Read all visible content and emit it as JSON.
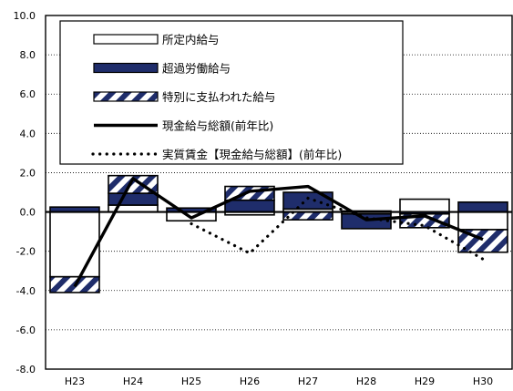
{
  "chart_data": {
    "type": "bar",
    "title": "",
    "xlabel": "",
    "ylabel": "",
    "categories": [
      "H23",
      "H24",
      "H25",
      "H26",
      "H27",
      "H28",
      "H29",
      "H30"
    ],
    "ylim": [
      -8.0,
      10.0
    ],
    "yticks": [
      "10.0",
      "8.0",
      "6.0",
      "4.0",
      "2.0",
      "0.0",
      "-2.0",
      "-4.0",
      "-6.0",
      "-8.0"
    ],
    "grid": true,
    "legend_position": "top-left",
    "stacked": true,
    "series": [
      {
        "name": "所定内給与",
        "kind": "bar",
        "style": "white",
        "values": [
          -3.3,
          0.35,
          -0.45,
          -0.15,
          0.15,
          -0.1,
          0.65,
          -0.9
        ]
      },
      {
        "name": "超過労働給与",
        "kind": "bar",
        "style": "navy",
        "values": [
          0.25,
          0.6,
          0.2,
          0.6,
          0.85,
          -0.75,
          -0.1,
          0.5
        ]
      },
      {
        "name": "特別に支払われた給与",
        "kind": "bar",
        "style": "hatch",
        "values": [
          -0.8,
          0.9,
          0.0,
          0.7,
          -0.4,
          0.05,
          -0.7,
          -1.15
        ]
      },
      {
        "name": "現金給与総額(前年比)",
        "kind": "line",
        "style": "solid",
        "values": [
          -3.8,
          1.7,
          -0.3,
          1.05,
          1.3,
          -0.4,
          -0.2,
          -1.4
        ]
      },
      {
        "name": "実質賃金【現金給与総額】(前年比)",
        "kind": "line",
        "style": "dotted",
        "values": [
          null,
          null,
          -0.6,
          -2.1,
          0.7,
          -0.3,
          -0.7,
          -2.4
        ]
      }
    ]
  },
  "colors": {
    "navy": "#1f2d6b",
    "hatch_stripe": "#1f2d6b",
    "line": "#000000",
    "grid": "#000000"
  }
}
